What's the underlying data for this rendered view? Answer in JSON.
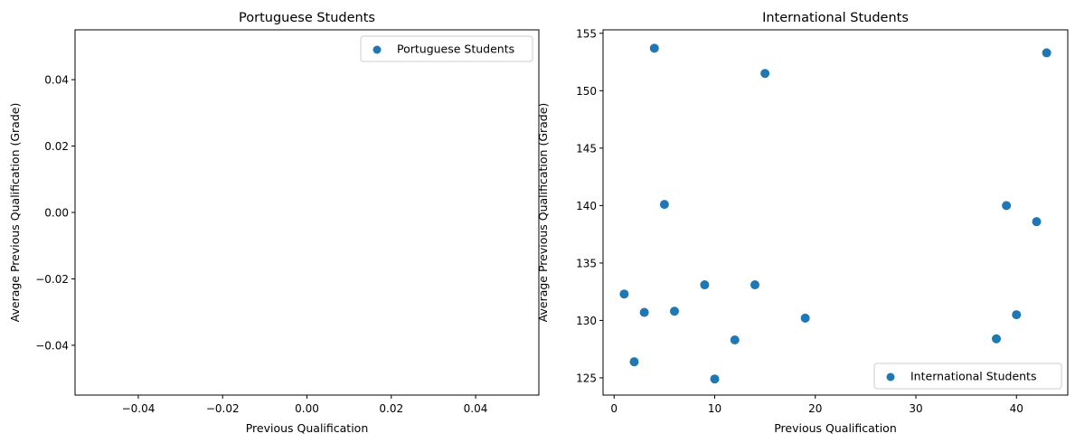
{
  "chart_data": [
    {
      "type": "scatter",
      "title": "Portuguese Students",
      "xlabel": "Previous Qualification",
      "ylabel": "Average Previous Qualification (Grade)",
      "xlim": [
        -0.055,
        0.055
      ],
      "ylim": [
        -0.055,
        0.055
      ],
      "xticks": [
        "−0.04",
        "−0.02",
        "0.00",
        "0.02",
        "0.04"
      ],
      "xtick_values": [
        -0.04,
        -0.02,
        0.0,
        0.02,
        0.04
      ],
      "yticks": [
        "−0.04",
        "−0.02",
        "0.00",
        "0.02",
        "0.04"
      ],
      "ytick_values": [
        -0.04,
        -0.02,
        0.0,
        0.02,
        0.04
      ],
      "legend": {
        "placement": "upper right",
        "entries": [
          "Portuguese Students"
        ]
      },
      "series": [
        {
          "name": "Portuguese Students",
          "color": "#1f77b4",
          "x": [],
          "y": []
        }
      ]
    },
    {
      "type": "scatter",
      "title": "International Students",
      "xlabel": "Previous Qualification",
      "ylabel": "Average Previous Qualification (Grade)",
      "xlim": [
        -1.1,
        45.1
      ],
      "ylim": [
        123.5,
        155.3
      ],
      "xticks": [
        "0",
        "10",
        "20",
        "30",
        "40"
      ],
      "xtick_values": [
        0,
        10,
        20,
        30,
        40
      ],
      "yticks": [
        "125",
        "130",
        "135",
        "140",
        "145",
        "150",
        "155"
      ],
      "ytick_values": [
        125,
        130,
        135,
        140,
        145,
        150,
        155
      ],
      "legend": {
        "placement": "lower right",
        "entries": [
          "International Students"
        ]
      },
      "series": [
        {
          "name": "International Students",
          "color": "#1f77b4",
          "x": [
            1,
            2,
            3,
            4,
            5,
            6,
            9,
            10,
            12,
            14,
            15,
            19,
            38,
            39,
            40,
            42,
            43
          ],
          "y": [
            132.3,
            126.4,
            130.7,
            153.7,
            140.1,
            130.8,
            133.1,
            124.9,
            128.3,
            133.1,
            151.5,
            130.2,
            128.4,
            140.0,
            130.5,
            138.6,
            153.3
          ]
        }
      ]
    }
  ]
}
